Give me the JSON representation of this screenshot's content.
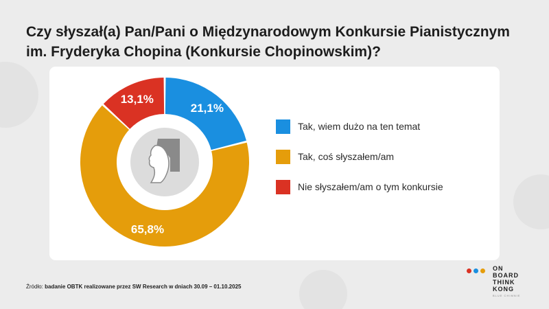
{
  "title": "Czy słyszał(a) Pan/Pani o Międzynarodowym Konkursie Pianistycznym im. Fryderyka Chopina (Konkursie Chopinowskim)?",
  "chart_data": {
    "type": "pie",
    "variant": "donut",
    "series": [
      {
        "name": "Tak, wiem dużo na ten temat",
        "value": 21.1,
        "label": "21,1%",
        "color": "#1a8fe0"
      },
      {
        "name": "Tak, coś słyszałem/am",
        "value": 65.8,
        "label": "65,8%",
        "color": "#e59d0b"
      },
      {
        "name": "Nie słyszałem/am o tym konkursie",
        "value": 13.1,
        "label": "13,1%",
        "color": "#da3223"
      }
    ],
    "legend_position": "right",
    "center_icon": "chopin-piano-icon"
  },
  "source": {
    "prefix": "Źródło: ",
    "text": "badanie OBTK realizowane przez SW Research w dniach 30.09 – 01.10.2025"
  },
  "logo": {
    "lines": [
      "ON",
      "BOARD",
      "THINK",
      "KONG"
    ],
    "sub": "BLUE CHIMNIE",
    "dot_colors": [
      "#da3223",
      "#1a8fe0",
      "#e59d0b"
    ]
  }
}
